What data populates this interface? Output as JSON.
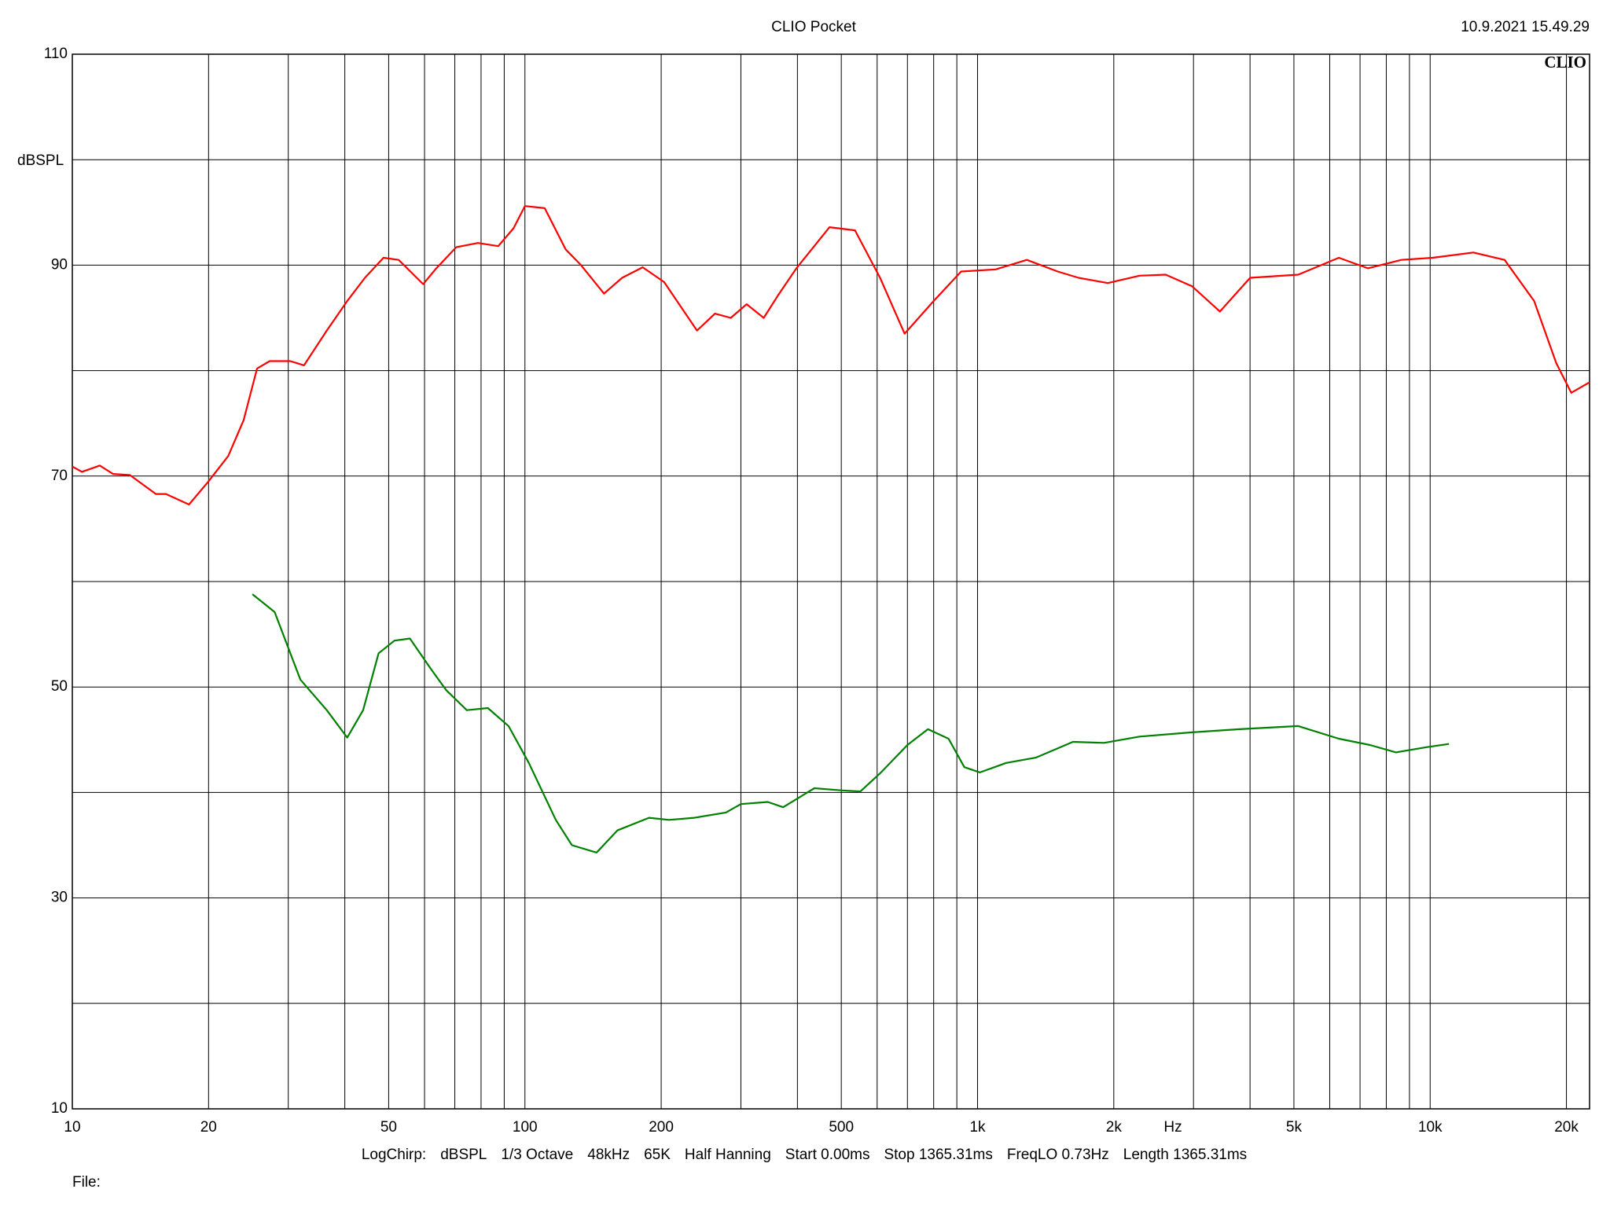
{
  "chart_data": {
    "type": "line",
    "title": "CLIO Pocket",
    "timestamp": "10.9.2021 15.49.29",
    "logo": "CLIO",
    "ylabel": "dBSPL",
    "xlabel": "Hz",
    "footer": [
      "LogChirp:",
      "dBSPL",
      "1/3 Octave",
      "48kHz",
      "65K",
      "Half Hanning",
      "Start 0.00ms",
      "Stop 1365.31ms",
      "FreqLO 0.73Hz",
      "Length 1365.31ms"
    ],
    "file_label": "File:",
    "xscale": "log",
    "xlim": [
      10,
      22500
    ],
    "ylim": [
      10,
      110
    ],
    "xticks": [
      10,
      20,
      50,
      100,
      200,
      500,
      {
        "value": 1000,
        "label": "1k"
      },
      {
        "value": 2000,
        "label": "2k"
      },
      {
        "value": 5000,
        "label": "5k"
      },
      {
        "value": 10000,
        "label": "10k"
      },
      {
        "value": 20000,
        "label": "20k"
      }
    ],
    "xgrid": [
      30,
      40,
      60,
      70,
      80,
      90,
      300,
      400,
      600,
      700,
      800,
      900,
      3000,
      4000,
      6000,
      7000,
      8000,
      9000
    ],
    "yticks": [
      10,
      30,
      50,
      70,
      90,
      110
    ],
    "ygrid": [
      20,
      40,
      60,
      80,
      100
    ],
    "grid": true,
    "series": [
      {
        "color": "#ff0000",
        "x": [
          10,
          10.5,
          11.5,
          12.3,
          13.4,
          15.3,
          16.1,
          18.1,
          19.9,
          22.1,
          23.9,
          25.6,
          27.3,
          30.3,
          32.5,
          36.5,
          40.5,
          44.3,
          48.7,
          52.6,
          59.6,
          63.4,
          70.5,
          78.7,
          87.3,
          94.4,
          100,
          110.6,
          123,
          133,
          149.5,
          164,
          182,
          203,
          240,
          263,
          285,
          309,
          337,
          362,
          398,
          471,
          536,
          609,
          690,
          800,
          920,
          1097,
          1285,
          1504,
          1671,
          1940,
          2280,
          2604,
          2978,
          3432,
          4001,
          5110,
          6286,
          7285,
          8640,
          10130,
          12460,
          14600,
          16970,
          19000,
          20500,
          22500
        ],
        "values": [
          70.9,
          70.4,
          71.0,
          70.2,
          70.1,
          68.3,
          68.3,
          67.3,
          69.4,
          71.9,
          75.3,
          80.2,
          80.9,
          80.9,
          80.5,
          83.8,
          86.6,
          88.8,
          90.7,
          90.5,
          88.2,
          89.6,
          91.7,
          92.1,
          91.8,
          93.5,
          95.6,
          95.4,
          91.5,
          90.0,
          87.3,
          88.8,
          89.8,
          88.4,
          83.8,
          85.4,
          85.0,
          86.3,
          85.0,
          87.1,
          89.7,
          93.6,
          93.3,
          88.8,
          83.5,
          86.6,
          89.4,
          89.6,
          90.5,
          89.4,
          88.8,
          88.3,
          89.0,
          89.1,
          88.0,
          85.6,
          88.8,
          89.1,
          90.7,
          89.7,
          90.5,
          90.7,
          91.2,
          90.5,
          86.6,
          80.7,
          77.9,
          78.9
        ]
      },
      {
        "color": "#008000",
        "x": [
          25.0,
          28.0,
          31.9,
          36.5,
          40.5,
          43.9,
          47.5,
          51.5,
          55.7,
          62.0,
          67.0,
          74.4,
          82.8,
          92.0,
          102,
          117,
          127,
          144,
          160,
          188,
          208,
          237,
          278,
          300,
          344,
          372,
          436,
          498,
          551,
          612,
          700,
          777,
          863,
          935,
          1012,
          1157,
          1345,
          1625,
          1903,
          2280,
          2978,
          3792,
          5110,
          6286,
          7360,
          8408,
          9840,
          11000
        ],
        "values": [
          58.8,
          57.1,
          50.7,
          47.8,
          45.2,
          47.8,
          53.2,
          54.4,
          54.6,
          51.7,
          49.7,
          47.8,
          48.0,
          46.3,
          42.8,
          37.4,
          35.0,
          34.3,
          36.4,
          37.6,
          37.4,
          37.6,
          38.1,
          38.9,
          39.1,
          38.6,
          40.4,
          40.2,
          40.1,
          41.9,
          44.5,
          46.0,
          45.1,
          42.4,
          41.9,
          42.8,
          43.3,
          44.8,
          44.7,
          45.3,
          45.7,
          46.0,
          46.3,
          45.1,
          44.5,
          43.8,
          44.3,
          44.6
        ]
      }
    ]
  }
}
